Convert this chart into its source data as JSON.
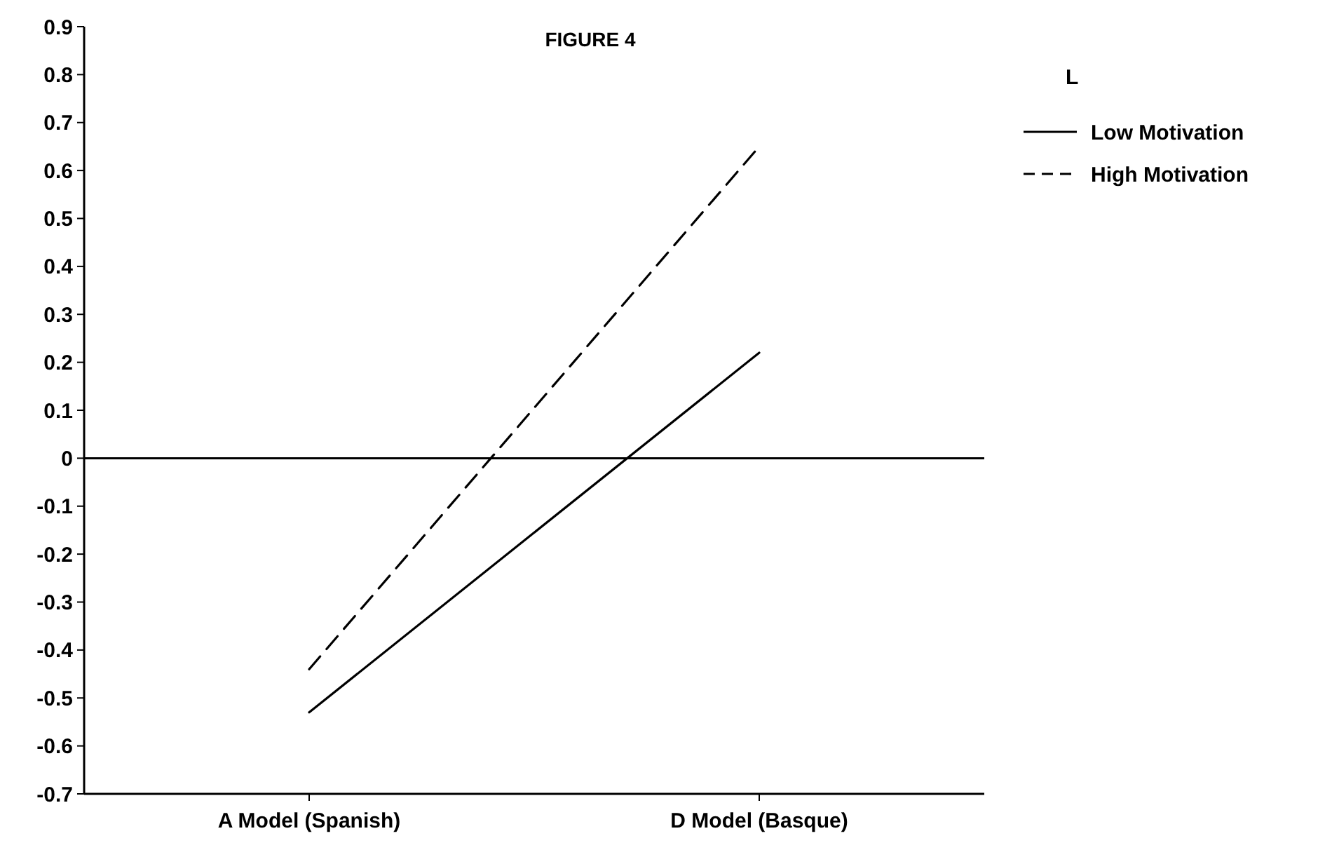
{
  "chart_data": {
    "type": "line",
    "title": "FIGURE 4",
    "legend_title": "L",
    "categories": [
      "A Model (Spanish)",
      "D Model (Basque)"
    ],
    "series": [
      {
        "name": "Low Motivation",
        "color": "#000000",
        "line_style": "solid",
        "values": [
          -0.53,
          0.22
        ]
      },
      {
        "name": "High Motivation",
        "color": "#000000",
        "line_style": "dashed",
        "values": [
          -0.44,
          0.65
        ]
      }
    ],
    "ylim": [
      -0.7,
      0.9
    ],
    "yticks": [
      0.9,
      0.8,
      0.7,
      0.6,
      0.5,
      0.4,
      0.3,
      0.2,
      0.1,
      0,
      -0.1,
      -0.2,
      -0.3,
      -0.4,
      -0.5,
      -0.6,
      -0.7
    ],
    "ref_lines": [
      {
        "axis": "y",
        "value": 0,
        "color": "#000000"
      }
    ],
    "grid": false,
    "legend": "right",
    "marker": "none"
  }
}
